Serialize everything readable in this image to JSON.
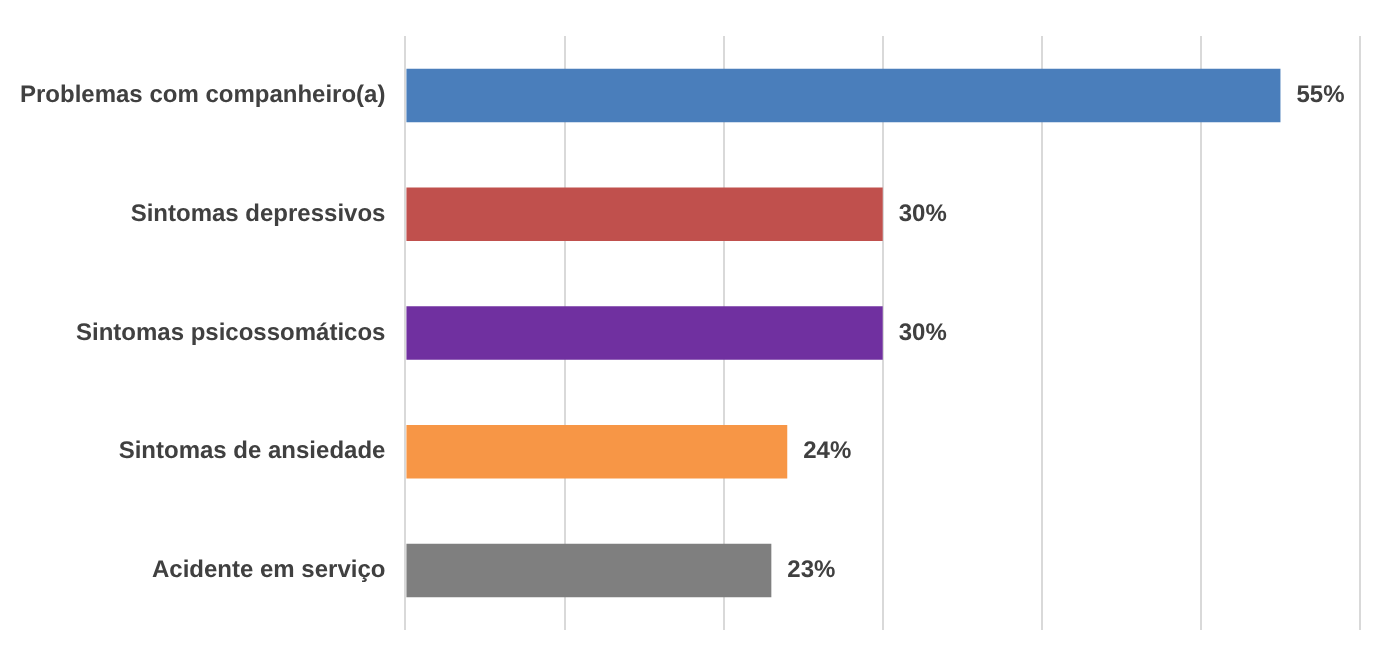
{
  "chart_data": {
    "type": "bar",
    "orientation": "horizontal",
    "categories": [
      "Problemas com companheiro(a)",
      "Sintomas depressivos",
      "Sintomas psicossomáticos",
      "Sintomas de ansiedade",
      "Acidente em serviço"
    ],
    "values": [
      55,
      30,
      30,
      24,
      23
    ],
    "colors": [
      "#4a7ebb",
      "#c0504d",
      "#7030a0",
      "#f79646",
      "#7f7f7f"
    ],
    "value_labels": [
      "55%",
      "30%",
      "30%",
      "24%",
      "23%"
    ],
    "xlim": [
      0,
      60
    ],
    "xticks": [
      {
        "value": 0,
        "label": null
      },
      {
        "value": 10,
        "label": null
      },
      {
        "value": 20,
        "label": null
      },
      {
        "value": 30,
        "label": null
      },
      {
        "value": 40,
        "label": null
      },
      {
        "value": 50,
        "label": null
      },
      {
        "value": 60,
        "label": null
      }
    ],
    "grid": "x",
    "tick_labels": "y"
  }
}
